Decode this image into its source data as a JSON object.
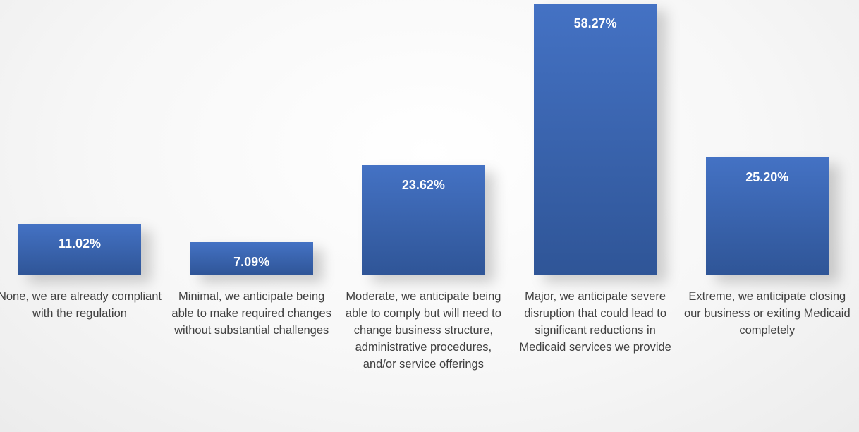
{
  "chart_data": {
    "type": "bar",
    "categories": [
      "None, we are already compliant with the regulation",
      "Minimal, we anticipate being able to make required changes without substantial challenges",
      "Moderate, we anticipate being able to comply but will need to change business structure, administrative procedures, and/or service offerings",
      "Major, we anticipate severe disruption that could lead to significant reductions in Medicaid services we provide",
      "Extreme, we anticipate closing our business or exiting Medicaid completely"
    ],
    "values": [
      11.02,
      7.09,
      23.62,
      58.27,
      25.2
    ],
    "value_labels": [
      "11.02%",
      "7.09%",
      "23.62%",
      "58.27%",
      "25.20%"
    ],
    "color": "#4472c4"
  }
}
